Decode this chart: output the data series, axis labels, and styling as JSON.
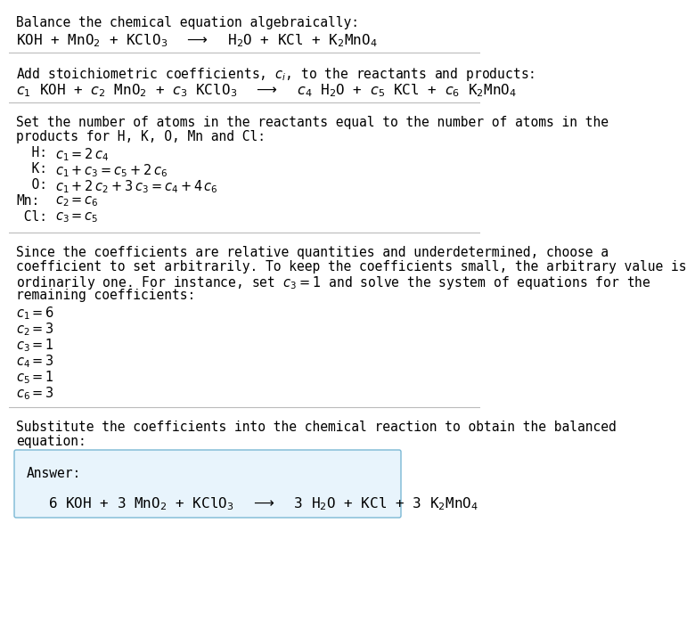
{
  "bg_color": "#ffffff",
  "text_color": "#000000",
  "box_color": "#e8f4fc",
  "box_edge_color": "#7ab8d4",
  "title_section": "Balance the chemical equation algebraically:",
  "eq1": "KOH + MnO$_2$ + KClO$_3$  $\\longrightarrow$  H$_2$O + KCl + K$_2$MnO$_4$",
  "section2_title": "Add stoichiometric coefficients, $c_i$, to the reactants and products:",
  "eq2": "$c_1$ KOH + $c_2$ MnO$_2$ + $c_3$ KClO$_3$  $\\longrightarrow$  $c_4$ H$_2$O + $c_5$ KCl + $c_6$ K$_2$MnO$_4$",
  "section3_line1": "Set the number of atoms in the reactants equal to the number of atoms in the",
  "section3_line2": "products for H, K, O, Mn and Cl:",
  "eq_labels": [
    "  H:",
    "  K:",
    "  O:",
    "Mn:",
    " Cl:"
  ],
  "eq_exprs": [
    "$c_1 = 2\\,c_4$",
    "$c_1 + c_3 = c_5 + 2\\,c_6$",
    "$c_1 + 2\\,c_2 + 3\\,c_3 = c_4 + 4\\,c_6$",
    "$c_2 = c_6$",
    "$c_3 = c_5$"
  ],
  "section4_line1": "Since the coefficients are relative quantities and underdetermined, choose a",
  "section4_line2": "coefficient to set arbitrarily. To keep the coefficients small, the arbitrary value is",
  "section4_line3": "ordinarily one. For instance, set $c_3 = 1$ and solve the system of equations for the",
  "section4_line4": "remaining coefficients:",
  "coefficients": [
    "$c_1 = 6$",
    "$c_2 = 3$",
    "$c_3 = 1$",
    "$c_4 = 3$",
    "$c_5 = 1$",
    "$c_6 = 3$"
  ],
  "section5_line1": "Substitute the coefficients into the chemical reaction to obtain the balanced",
  "section5_line2": "equation:",
  "answer_label": "Answer:",
  "answer_eq": "6 KOH + 3 MnO$_2$ + KClO$_3$  $\\longrightarrow$  3 H$_2$O + KCl + 3 K$_2$MnO$_4$",
  "font_size": 10.5,
  "font_size_eq": 11.5,
  "font_family": "monospace"
}
